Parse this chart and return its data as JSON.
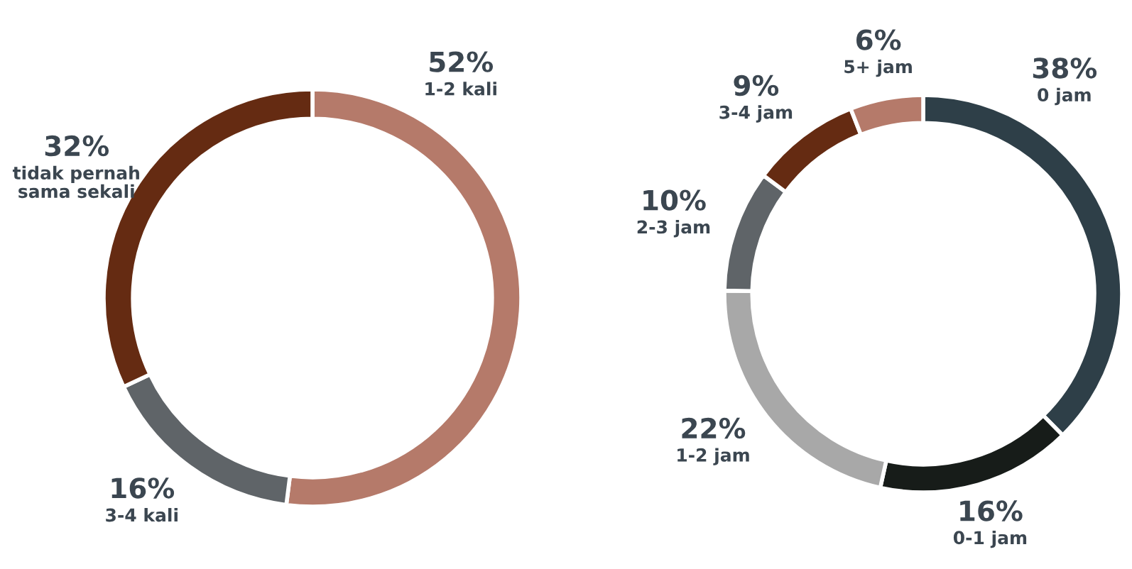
{
  "chart_data": [
    {
      "type": "donut",
      "categories": [
        "1-2 kali",
        "3-4 kali",
        "tidak pernah\nsama sekali"
      ],
      "values": [
        52,
        16,
        32
      ],
      "value_labels": [
        "52%",
        "16%",
        "32%"
      ],
      "colors": [
        "#b57a6a",
        "#5f6468",
        "#652b12"
      ]
    },
    {
      "type": "donut",
      "categories": [
        "0 jam",
        "0-1 jam",
        "1-2 jam",
        "2-3 jam",
        "3-4 jam",
        "5+ jam"
      ],
      "values": [
        38,
        16,
        22,
        10,
        9,
        6
      ],
      "value_labels": [
        "38%",
        "16%",
        "22%",
        "10%",
        "9%",
        "6%"
      ],
      "colors": [
        "#2e3f48",
        "#171c19",
        "#a8a8a8",
        "#5f6468",
        "#652b12",
        "#b57a6a"
      ]
    }
  ]
}
